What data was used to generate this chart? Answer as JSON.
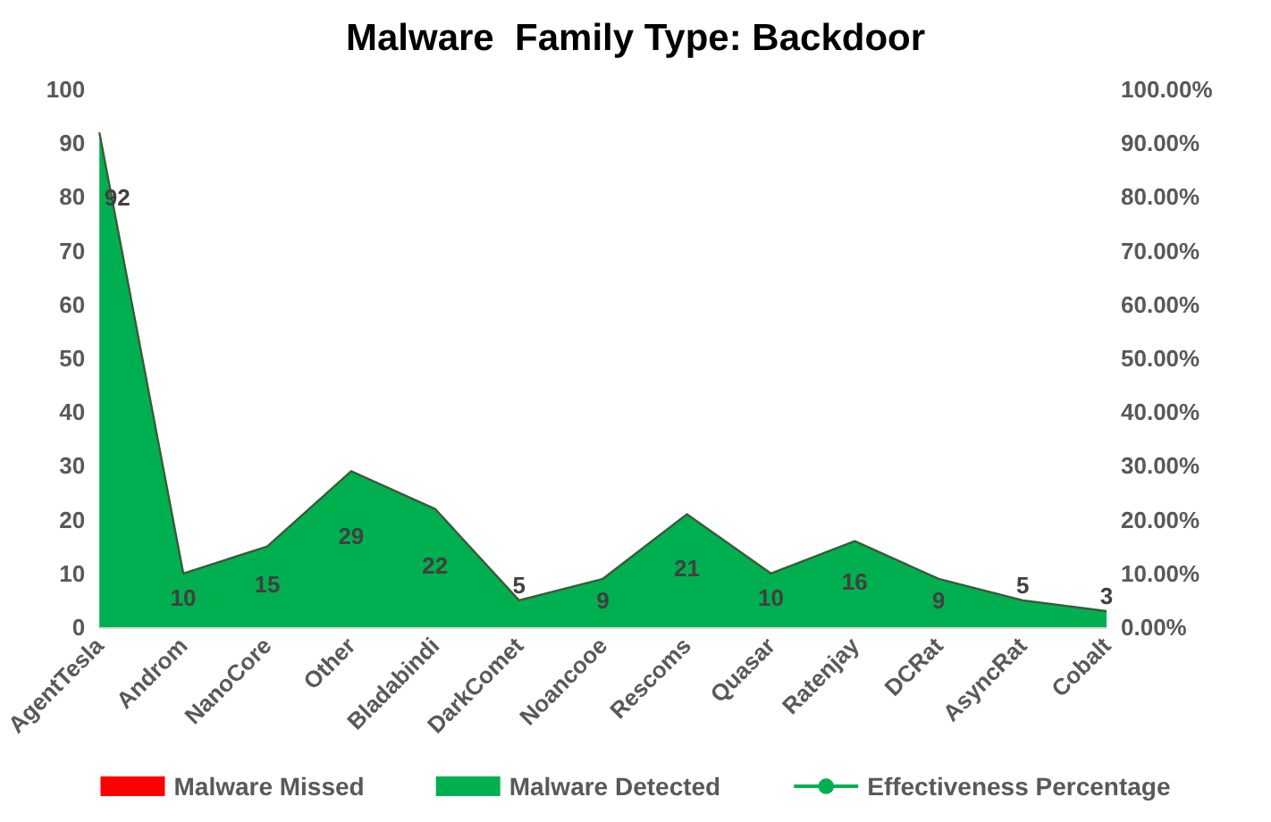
{
  "chart_data": {
    "type": "area",
    "title": "Malware  Family Type: Backdoor",
    "categories": [
      "AgentTesla",
      "Androm",
      "NanoCore",
      "Other",
      "Bladabindi",
      "DarkComet",
      "Noancooe",
      "Rescoms",
      "Quasar",
      "Ratenjay",
      "DCRat",
      "AsyncRat",
      "Cobalt"
    ],
    "series": [
      {
        "name": "Malware Missed",
        "color": "#ff0000",
        "values": [
          null,
          null,
          null,
          null,
          null,
          null,
          null,
          null,
          null,
          null,
          null,
          null,
          null
        ]
      },
      {
        "name": "Malware Detected",
        "color": "#00b050",
        "values": [
          92,
          10,
          15,
          29,
          22,
          5,
          9,
          21,
          10,
          16,
          9,
          5,
          3
        ]
      },
      {
        "name": "Effectiveness Percentage",
        "type": "line",
        "color": "#00b050",
        "values": [
          null,
          null,
          null,
          null,
          null,
          null,
          null,
          null,
          null,
          null,
          null,
          null,
          null
        ]
      }
    ],
    "ylim": [
      0,
      100
    ],
    "yticks": [
      0,
      10,
      20,
      30,
      40,
      50,
      60,
      70,
      80,
      90,
      100
    ],
    "y2lim": [
      0,
      100
    ],
    "y2ticks": [
      {
        "value": 0,
        "label": "0.00%"
      },
      {
        "value": 10,
        "label": "10.00%"
      },
      {
        "value": 20,
        "label": "20.00%"
      },
      {
        "value": 30,
        "label": "30.00%"
      },
      {
        "value": 40,
        "label": "40.00%"
      },
      {
        "value": 50,
        "label": "50.00%"
      },
      {
        "value": 60,
        "label": "60.00%"
      },
      {
        "value": 70,
        "label": "70.00%"
      },
      {
        "value": 80,
        "label": "80.00%"
      },
      {
        "value": 90,
        "label": "90.00%"
      },
      {
        "value": 100,
        "label": "100.00%"
      }
    ],
    "data_labels": true,
    "grid": false,
    "legend": "bottom"
  }
}
